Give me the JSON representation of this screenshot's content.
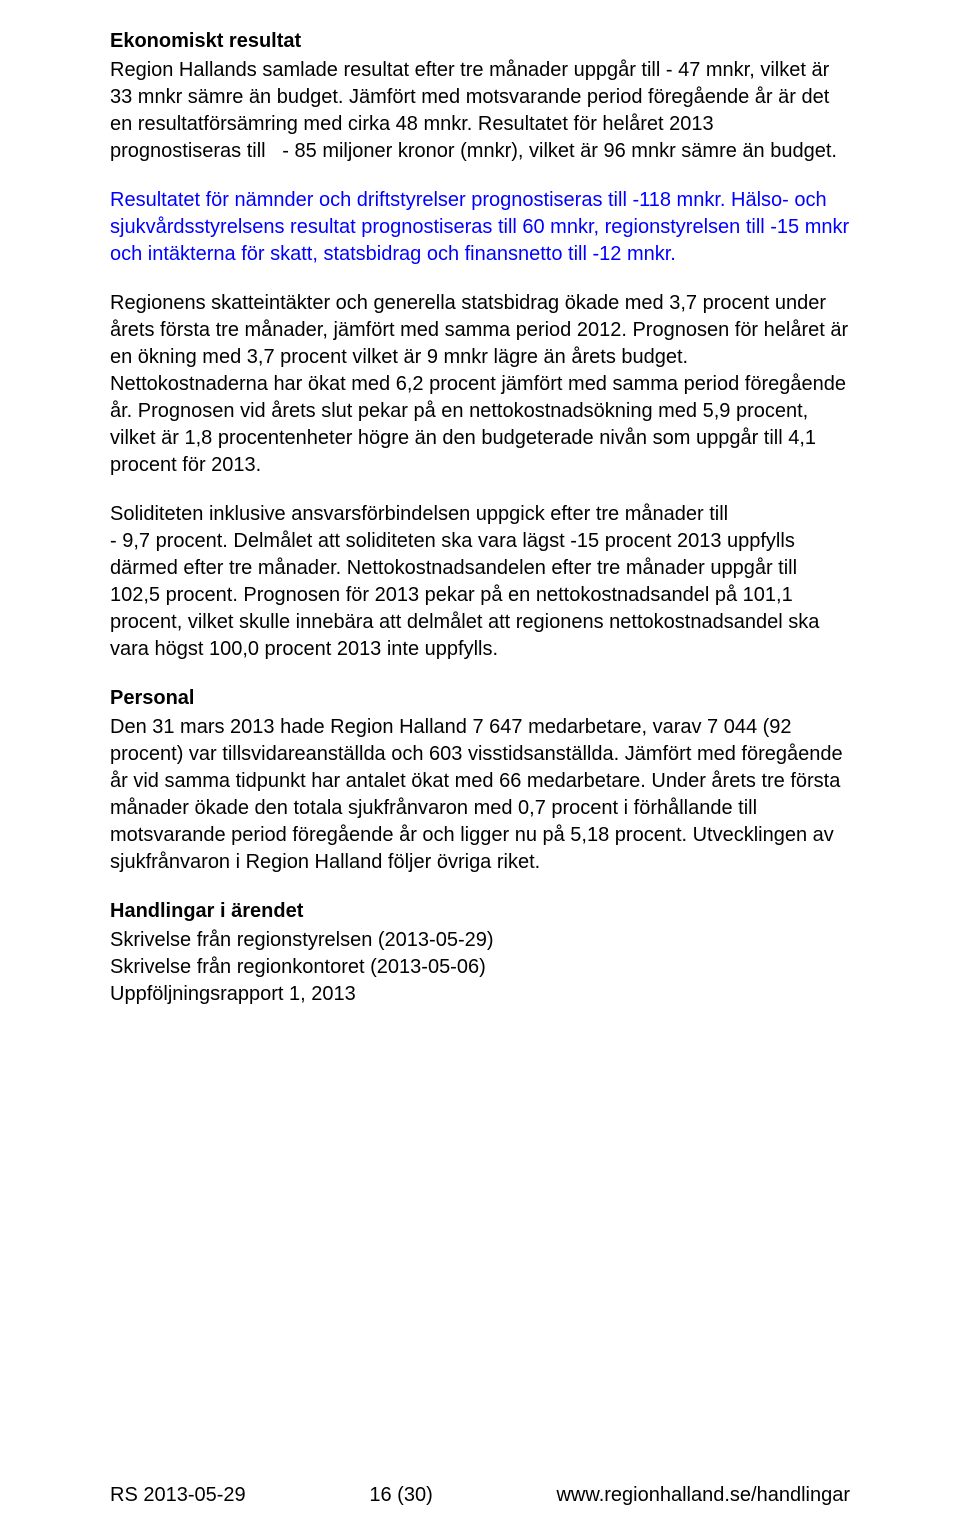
{
  "ekonomi": {
    "heading": "Ekonomiskt resultat",
    "para1": "Region Hallands samlade resultat efter tre månader uppgår till - 47 mnkr, vilket är 33 mnkr sämre än budget. Jämfört med motsvarande period föregående år är det en resultatförsämring med cirka 48 mnkr. Resultatet för helåret 2013 prognostiseras till   - 85 miljoner kronor (mnkr), vilket är 96 mnkr sämre än budget.",
    "para2": "Resultatet för nämnder och driftstyrelser prognostiseras till -118 mnkr. Hälso- och sjukvårdsstyrelsens resultat prognostiseras till 60 mnkr, regionstyrelsen till -15 mnkr och intäkterna för skatt, statsbidrag och finansnetto till -12 mnkr.",
    "para3": "Regionens skatteintäkter och generella statsbidrag ökade med 3,7 procent under årets första tre månader, jämfört med samma period 2012. Prognosen för helåret är en ökning med 3,7 procent vilket är 9 mnkr lägre än årets budget. Nettokostnaderna har ökat med 6,2 procent jämfört med samma period föregående år. Prognosen vid årets slut pekar på en nettokostnadsökning med 5,9 procent, vilket är 1,8 procentenheter högre än den budgeterade nivån som uppgår till 4,1 procent för 2013.",
    "para4": "Soliditeten inklusive ansvarsförbindelsen uppgick efter tre månader till\n- 9,7 procent. Delmålet att soliditeten ska vara lägst -15 procent 2013 uppfylls därmed efter tre månader. Nettokostnadsandelen efter tre månader uppgår till 102,5 procent. Prognosen för 2013 pekar på en nettokostnadsandel på 101,1 procent, vilket skulle innebära att delmålet att regionens nettokostnadsandel ska vara högst 100,0 procent 2013 inte uppfylls."
  },
  "personal": {
    "heading": "Personal",
    "para1": "Den 31 mars 2013 hade Region Halland 7 647 medarbetare, varav 7 044 (92 procent) var tillsvidareanställda och 603 visstidsanställda. Jämfört med föregående år vid samma tidpunkt har antalet ökat med 66 medarbetare. Under årets tre första månader ökade den totala sjukfrånvaron med 0,7 procent i förhållande till motsvarande period föregående år och ligger nu på 5,18 procent. Utvecklingen av sjukfrånvaron i Region Halland följer övriga riket."
  },
  "handlingar": {
    "heading": "Handlingar i ärendet",
    "line1": "Skrivelse från regionstyrelsen (2013-05-29)",
    "line2": "Skrivelse från regionkontoret (2013-05-06)",
    "line3": "Uppföljningsrapport 1, 2013"
  },
  "footer": {
    "left": "RS 2013-05-29",
    "center": "16 (30)",
    "right": "www.regionhalland.se/handlingar"
  }
}
